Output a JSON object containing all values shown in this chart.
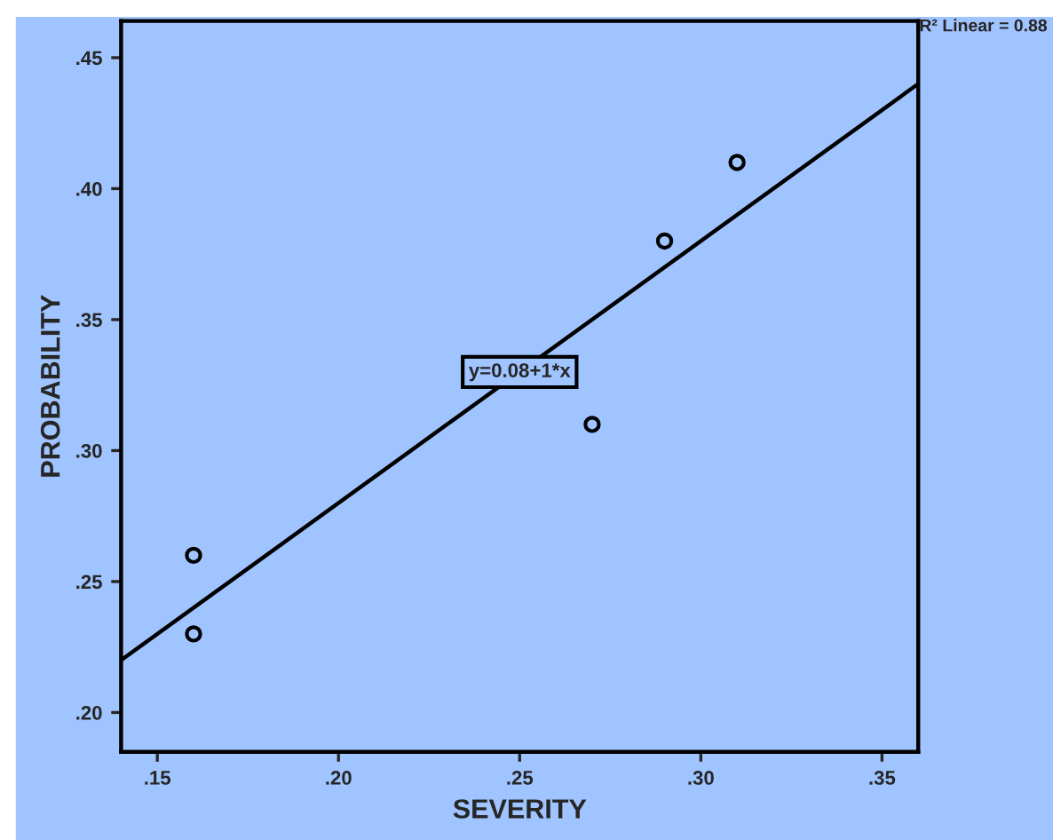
{
  "chart_data": {
    "type": "scatter",
    "xlabel": "SEVERITY",
    "ylabel": "PROBABILITY",
    "series": [
      {
        "color": "#000000",
        "x": [
          0.16,
          0.16,
          0.27,
          0.29,
          0.31
        ],
        "values": [
          0.26,
          0.23,
          0.31,
          0.38,
          0.41
        ],
        "marker": "circle"
      },
      {
        "type": "line",
        "color": "#000000",
        "x": [
          0.14,
          0.36
        ],
        "values": [
          0.22,
          0.44
        ],
        "marker": "none",
        "line_style": "solid"
      }
    ],
    "xlim": [
      0.14,
      0.36
    ],
    "ylim": [
      0.185,
      0.464
    ],
    "xticks": [
      {
        "value": 0.15,
        "label": ".15"
      },
      {
        "value": 0.2,
        "label": ".20"
      },
      {
        "value": 0.25,
        "label": ".25"
      },
      {
        "value": 0.3,
        "label": ".30"
      },
      {
        "value": 0.35,
        "label": ".35"
      }
    ],
    "yticks": [
      {
        "value": 0.2,
        "label": ".20"
      },
      {
        "value": 0.25,
        "label": ".25"
      },
      {
        "value": 0.3,
        "label": ".30"
      },
      {
        "value": 0.35,
        "label": ".35"
      },
      {
        "value": 0.4,
        "label": ".40"
      },
      {
        "value": 0.45,
        "label": ".45"
      }
    ],
    "annotations": [
      {
        "text": "y=0.08+1*x",
        "x": 0.25,
        "y": 0.33
      },
      "R² Linear = 0.88"
    ],
    "grid": false,
    "legend": false
  }
}
